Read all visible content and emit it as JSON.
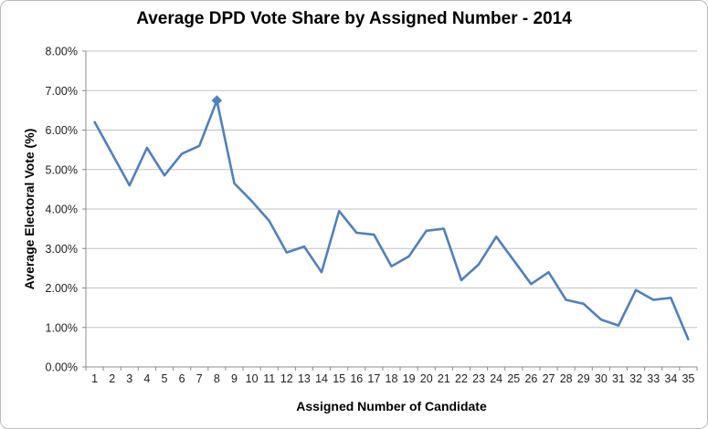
{
  "window": {
    "background": "#ffffff",
    "border_color": "#bdbdbd"
  },
  "chart_data": {
    "type": "line",
    "title": "Average DPD Vote Share by Assigned Number - 2014",
    "xlabel": "Assigned Number of Candidate",
    "ylabel": "Average Electoral Vote (%)",
    "x": [
      1,
      2,
      3,
      4,
      5,
      6,
      7,
      8,
      9,
      10,
      11,
      12,
      13,
      14,
      15,
      16,
      17,
      18,
      19,
      20,
      21,
      22,
      23,
      24,
      25,
      26,
      27,
      28,
      29,
      30,
      31,
      32,
      33,
      34,
      35
    ],
    "values": [
      6.2,
      5.4,
      4.6,
      5.55,
      4.85,
      5.4,
      5.6,
      6.75,
      4.65,
      4.2,
      3.7,
      2.9,
      3.05,
      2.4,
      3.95,
      3.4,
      3.35,
      2.55,
      2.8,
      3.45,
      3.5,
      2.2,
      2.6,
      3.3,
      2.7,
      2.1,
      2.4,
      1.7,
      1.6,
      1.2,
      1.05,
      1.95,
      1.7,
      1.75,
      0.7
    ],
    "ylim": [
      0,
      8
    ],
    "ytick_step": 1,
    "ytick_labels": [
      "0.00%",
      "1.00%",
      "2.00%",
      "3.00%",
      "4.00%",
      "5.00%",
      "6.00%",
      "7.00%",
      "8.00%"
    ],
    "grid": true,
    "legend": "none",
    "line_color": "#4F81BD",
    "gridline_color": "#c3c3c3",
    "axis_color": "#8c8c8c",
    "tick_label_color": "#1f1f1f",
    "marker": {
      "at_x": 8,
      "shape": "diamond",
      "size": 10
    }
  }
}
